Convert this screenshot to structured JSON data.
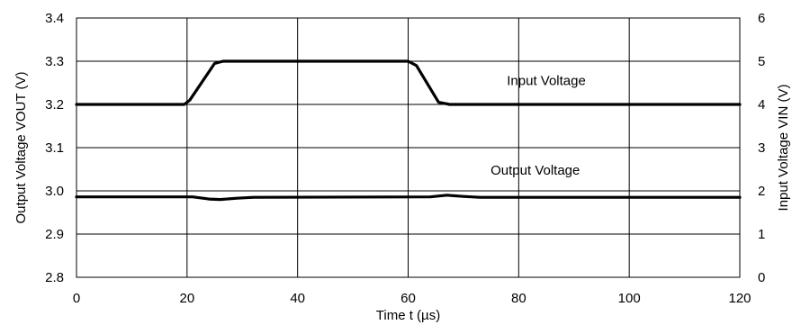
{
  "chart_data": {
    "type": "line",
    "xlabel": "Time t (µs)",
    "ylabel_left": "Output Voltage VOUT (V)",
    "ylabel_right": "Input Voltage VIN (V)",
    "xlim": [
      0,
      120
    ],
    "ylim_left": [
      2.8,
      3.4
    ],
    "ylim_right": [
      0,
      6
    ],
    "grid": true,
    "x_ticks": [
      "0",
      "20",
      "40",
      "60",
      "80",
      "100",
      "120"
    ],
    "y_left_ticks": [
      "2.8",
      "2.9",
      "3.0",
      "3.1",
      "3.2",
      "3.3",
      "3.4"
    ],
    "y_right_ticks": [
      "0",
      "1",
      "2",
      "3",
      "4",
      "5",
      "6"
    ],
    "series": [
      {
        "name": "Input Voltage",
        "axis": "right",
        "color": "#000000",
        "x": [
          0,
          19.5,
          20.5,
          25,
          26.5,
          60,
          61.5,
          65.5,
          67.5,
          120
        ],
        "y": [
          4.0,
          4.0,
          4.1,
          4.95,
          5.0,
          5.0,
          4.9,
          4.05,
          4.0,
          4.0
        ]
      },
      {
        "name": "Output Voltage",
        "axis": "left",
        "color": "#000000",
        "x": [
          0,
          21,
          24,
          26,
          29,
          32,
          64,
          67,
          70,
          73,
          120
        ],
        "y": [
          2.986,
          2.986,
          2.981,
          2.98,
          2.983,
          2.985,
          2.986,
          2.99,
          2.987,
          2.985,
          2.985
        ]
      }
    ]
  }
}
